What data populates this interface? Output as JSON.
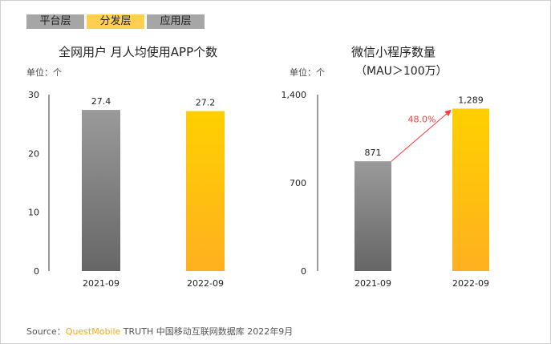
{
  "tabs": [
    {
      "label": "平台层",
      "color": "#a6a6a6"
    },
    {
      "label": "分发层",
      "color": "#ffd04f"
    },
    {
      "label": "应用层",
      "color": "#a6a6a6"
    }
  ],
  "source": {
    "prefix": "Source：",
    "brand": "QuestMobile",
    "rest": " TRUTH 中国移动互联网数据库 2022年9月",
    "brand_color": "#f5a623"
  },
  "chart_data": [
    {
      "type": "bar",
      "title": "全网用户 月人均使用APP个数",
      "unit": "单位：个",
      "categories": [
        "2021-09",
        "2022-09"
      ],
      "values": [
        27.4,
        27.2
      ],
      "labels": [
        "27.4",
        "27.2"
      ],
      "ylim": [
        0,
        30
      ],
      "yticks": [
        "0",
        "10",
        "20",
        "30"
      ],
      "colors": [
        "#808080",
        "#ffc000"
      ]
    },
    {
      "type": "bar",
      "title": "微信小程序数量",
      "subtitle": "（MAU＞100万）",
      "unit": "单位：个",
      "categories": [
        "2021-09",
        "2022-09"
      ],
      "values": [
        871,
        1289
      ],
      "labels": [
        "871",
        "1,289"
      ],
      "ylim": [
        0,
        1400
      ],
      "yticks": [
        "0",
        "700",
        "1,400"
      ],
      "colors": [
        "#808080",
        "#ffc000"
      ],
      "annotation": {
        "text": "48.0%",
        "color": "#ff3b3b"
      }
    }
  ]
}
